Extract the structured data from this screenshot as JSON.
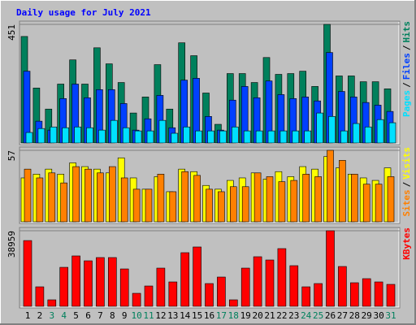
{
  "title": "Daily usage for July 2021",
  "legend_separator": "/",
  "chart_data": [
    {
      "type": "bar",
      "ylim": [
        0,
        451
      ],
      "yticks": [
        451
      ],
      "series": [
        {
          "name": "Hits",
          "color": "#00805c",
          "values": [
            405,
            209,
            129,
            224,
            316,
            224,
            362,
            301,
            230,
            114,
            175,
            298,
            129,
            381,
            332,
            190,
            71,
            264,
            264,
            230,
            325,
            261,
            264,
            273,
            215,
            451,
            255,
            255,
            233,
            233,
            206
          ]
        },
        {
          "name": "Files",
          "color": "#0040ff",
          "values": [
            273,
            83,
            49,
            169,
            224,
            172,
            203,
            203,
            150,
            49,
            92,
            181,
            58,
            239,
            246,
            101,
            49,
            163,
            215,
            172,
            236,
            184,
            169,
            175,
            160,
            344,
            196,
            175,
            154,
            144,
            120
          ]
        },
        {
          "name": "Pages",
          "color": "#00e0ff",
          "values": [
            40,
            55,
            61,
            58,
            61,
            58,
            49,
            86,
            58,
            46,
            46,
            86,
            37,
            61,
            46,
            46,
            46,
            61,
            46,
            46,
            46,
            46,
            46,
            46,
            114,
            101,
            46,
            74,
            61,
            89,
            77
          ]
        }
      ]
    },
    {
      "type": "bar",
      "ylim": [
        0,
        57
      ],
      "yticks": [
        57
      ],
      "series": [
        {
          "name": "Visits",
          "color": "#ffff00",
          "values": [
            35,
            38,
            42,
            38,
            47,
            44,
            42,
            39,
            51,
            35,
            26,
            36,
            24,
            42,
            40,
            29,
            26,
            33,
            35,
            39,
            34,
            40,
            36,
            44,
            42,
            52,
            43,
            38,
            35,
            33,
            43
          ]
        },
        {
          "name": "Sites",
          "color": "#ff8000",
          "values": [
            42,
            35,
            39,
            31,
            44,
            42,
            39,
            44,
            35,
            26,
            26,
            38,
            24,
            40,
            37,
            26,
            24,
            28,
            28,
            39,
            36,
            32,
            33,
            38,
            36,
            57,
            49,
            38,
            30,
            30,
            36
          ]
        }
      ]
    },
    {
      "type": "bar",
      "ylim": [
        0,
        38959
      ],
      "yticks": [
        38959
      ],
      "categories": [
        1,
        2,
        3,
        4,
        5,
        6,
        7,
        8,
        9,
        10,
        11,
        12,
        13,
        14,
        15,
        16,
        17,
        18,
        19,
        20,
        21,
        22,
        23,
        24,
        25,
        26,
        27,
        28,
        29,
        30,
        31
      ],
      "category_colors": [
        "#000000",
        "#000000",
        "#00805c",
        "#00805c",
        "#000000",
        "#000000",
        "#000000",
        "#000000",
        "#000000",
        "#00805c",
        "#00805c",
        "#000000",
        "#000000",
        "#000000",
        "#000000",
        "#000000",
        "#00805c",
        "#00805c",
        "#000000",
        "#000000",
        "#000000",
        "#000000",
        "#000000",
        "#00805c",
        "#00805c",
        "#000000",
        "#000000",
        "#000000",
        "#000000",
        "#000000",
        "#00805c"
      ],
      "series": [
        {
          "name": "KBytes",
          "color": "#ff0000",
          "values": [
            33900,
            10050,
            3350,
            20100,
            25980,
            23460,
            25140,
            25140,
            19270,
            6700,
            10470,
            19690,
            12570,
            27650,
            30590,
            11730,
            15080,
            3350,
            19690,
            25560,
            23880,
            29750,
            20950,
            10050,
            11730,
            38959,
            20530,
            12150,
            14250,
            12570,
            11310
          ]
        }
      ]
    }
  ]
}
